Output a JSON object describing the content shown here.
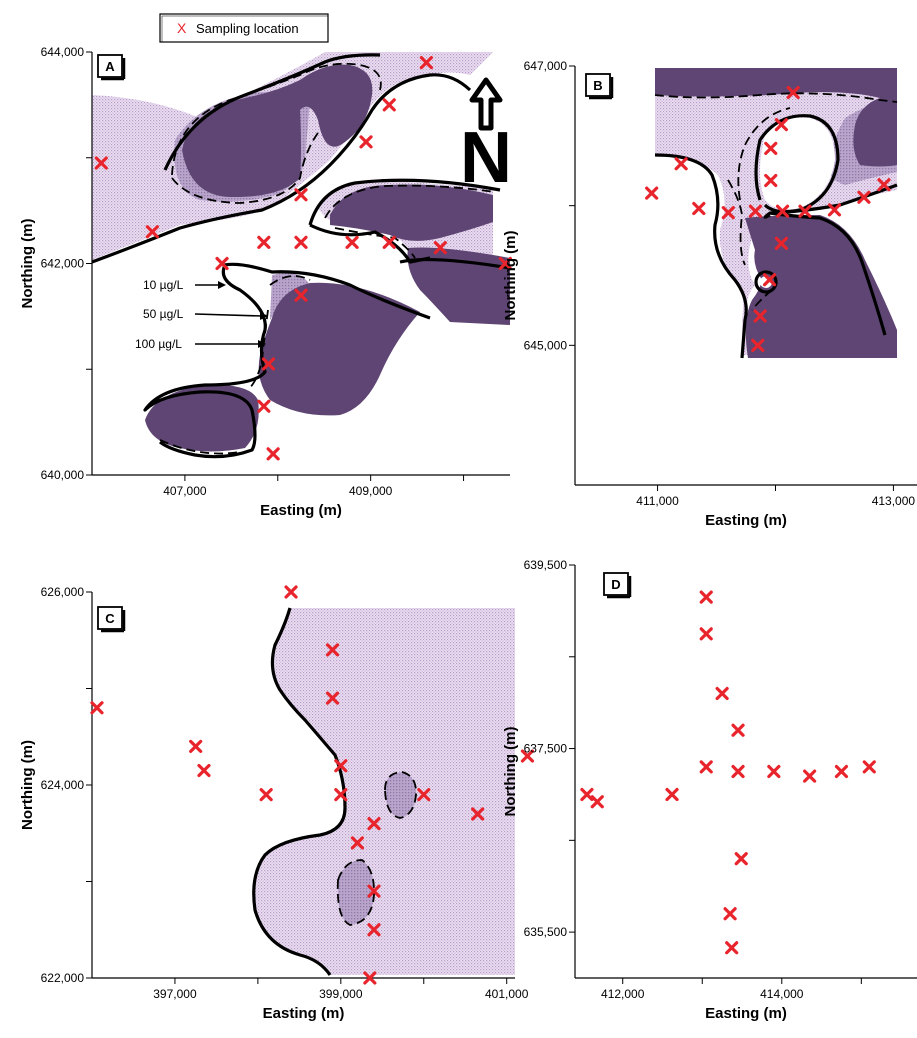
{
  "legend": {
    "marker": "X",
    "label": "Sampling location"
  },
  "colors": {
    "marker": "#e8242c",
    "light": "#dcc8e6",
    "mid": "#b7a2c8",
    "dark": "#5e4573",
    "line": "#000000"
  },
  "north_arrow_label": "N",
  "panels": [
    {
      "id": "A",
      "x_label": "Easting (m)",
      "y_label": "Northing (m)",
      "xlim": [
        406000,
        410500
      ],
      "ylim": [
        640000,
        644000
      ],
      "x_ticks": [
        {
          "value": 407000,
          "label": "407,000"
        },
        {
          "value": 409000,
          "label": "409,000"
        }
      ],
      "x_minor": [
        408000,
        410000
      ],
      "y_ticks": [
        {
          "value": 640000,
          "label": "640,000"
        },
        {
          "value": 642000,
          "label": "642,000"
        },
        {
          "value": 644000,
          "label": "644,000"
        }
      ],
      "y_minor": [
        641000,
        643000
      ],
      "annotations": [
        {
          "text": "10 µg/L",
          "value": 10,
          "unit": "µg/L"
        },
        {
          "text": "50 µg/L",
          "value": 50,
          "unit": "µg/L"
        },
        {
          "text": "100 µg/L",
          "value": 100,
          "unit": "µg/L"
        }
      ],
      "samples": [
        [
          409600,
          643900
        ],
        [
          409200,
          643500
        ],
        [
          408950,
          643150
        ],
        [
          406100,
          642950
        ],
        [
          408250,
          642650
        ],
        [
          406650,
          642300
        ],
        [
          407400,
          642000
        ],
        [
          407850,
          642200
        ],
        [
          408250,
          642200
        ],
        [
          408800,
          642200
        ],
        [
          409200,
          642200
        ],
        [
          409750,
          642150
        ],
        [
          410450,
          642000
        ],
        [
          408250,
          641700
        ],
        [
          407900,
          641050
        ],
        [
          407850,
          640650
        ],
        [
          407950,
          640200
        ]
      ]
    },
    {
      "id": "B",
      "x_label": "Easting (m)",
      "y_label": "Northing (m)",
      "xlim": [
        410300,
        413200
      ],
      "ylim": [
        644000,
        647000
      ],
      "x_ticks": [
        {
          "value": 411000,
          "label": "411,000"
        },
        {
          "value": 413000,
          "label": "413,000"
        }
      ],
      "x_minor": [
        412000
      ],
      "y_ticks": [
        {
          "value": 645000,
          "label": "645,000"
        },
        {
          "value": 647000,
          "label": "647,000"
        }
      ],
      "y_minor": [
        646000
      ],
      "samples": [
        [
          412150,
          646810
        ],
        [
          412050,
          646580
        ],
        [
          411960,
          646410
        ],
        [
          411960,
          646180
        ],
        [
          411200,
          646300
        ],
        [
          410950,
          646090
        ],
        [
          411350,
          645980
        ],
        [
          411600,
          645950
        ],
        [
          411830,
          645960
        ],
        [
          412060,
          645960
        ],
        [
          412250,
          645960
        ],
        [
          412500,
          645970
        ],
        [
          412750,
          646060
        ],
        [
          412920,
          646150
        ],
        [
          412050,
          645730
        ],
        [
          411950,
          645470
        ],
        [
          411870,
          645210
        ],
        [
          411850,
          645000
        ]
      ]
    },
    {
      "id": "C",
      "x_label": "Easting (m)",
      "y_label": "Northing (m)",
      "xlim": [
        396000,
        401100
      ],
      "ylim": [
        622000,
        626000
      ],
      "x_ticks": [
        {
          "value": 397000,
          "label": "397,000"
        },
        {
          "value": 399000,
          "label": "399,000"
        },
        {
          "value": 401000,
          "label": "401,000"
        }
      ],
      "x_minor": [
        398000,
        400000
      ],
      "y_ticks": [
        {
          "value": 622000,
          "label": "622,000"
        },
        {
          "value": 624000,
          "label": "624,000"
        },
        {
          "value": 626000,
          "label": "626,000"
        }
      ],
      "y_minor": [
        623000,
        625000
      ],
      "samples": [
        [
          398400,
          626000
        ],
        [
          398900,
          625400
        ],
        [
          398900,
          624900
        ],
        [
          399000,
          624200
        ],
        [
          396060,
          624800
        ],
        [
          397250,
          624400
        ],
        [
          397350,
          624150
        ],
        [
          398100,
          623900
        ],
        [
          399000,
          623900
        ],
        [
          399400,
          623600
        ],
        [
          399200,
          623400
        ],
        [
          400000,
          623900
        ],
        [
          400650,
          623700
        ],
        [
          401250,
          624300
        ],
        [
          399400,
          622900
        ],
        [
          399400,
          622500
        ],
        [
          399350,
          622000
        ]
      ]
    },
    {
      "id": "D",
      "x_label": "Easting (m)",
      "y_label": "Northing (m)",
      "xlim": [
        411400,
        415700
      ],
      "ylim": [
        635000,
        639500
      ],
      "x_ticks": [
        {
          "value": 412000,
          "label": "412,000"
        },
        {
          "value": 414000,
          "label": "414,000"
        }
      ],
      "x_minor": [
        413000,
        415000
      ],
      "y_ticks": [
        {
          "value": 635500,
          "label": "635,500"
        },
        {
          "value": 637500,
          "label": "637,500"
        },
        {
          "value": 639500,
          "label": "639,500"
        }
      ],
      "y_minor": [
        636500,
        638500
      ],
      "samples": [
        [
          413050,
          639150
        ],
        [
          413050,
          638750
        ],
        [
          413250,
          638100
        ],
        [
          413450,
          637700
        ],
        [
          413050,
          637300
        ],
        [
          413450,
          637250
        ],
        [
          413900,
          637250
        ],
        [
          414350,
          637200
        ],
        [
          414750,
          637250
        ],
        [
          415100,
          637300
        ],
        [
          411550,
          637000
        ],
        [
          411680,
          636920
        ],
        [
          412620,
          637000
        ],
        [
          413490,
          636300
        ],
        [
          413350,
          635700
        ],
        [
          413370,
          635330
        ]
      ]
    }
  ]
}
